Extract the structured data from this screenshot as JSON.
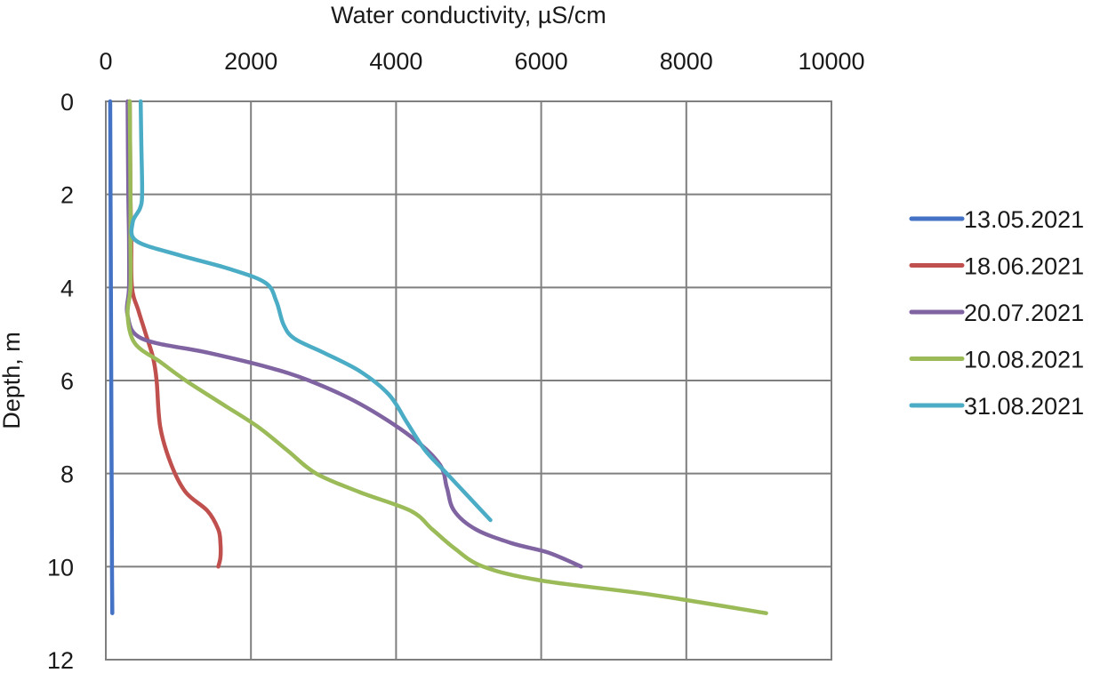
{
  "chart_data": {
    "type": "line",
    "title": "",
    "xlabel": "Water conductivity, µS/cm",
    "ylabel": "Depth, m",
    "xlim": [
      0,
      10000
    ],
    "ylim": [
      12,
      0
    ],
    "x_ticks": [
      0,
      2000,
      4000,
      6000,
      8000,
      10000
    ],
    "x_tick_labels": [
      "0",
      "2000",
      "4000",
      "6000",
      "8000",
      "10000"
    ],
    "y_ticks": [
      0,
      2,
      4,
      6,
      8,
      10,
      12
    ],
    "y_tick_labels": [
      "0",
      "2",
      "4",
      "6",
      "8",
      "10",
      "12"
    ],
    "x_axis_position": "top",
    "y_axis_inverted": true,
    "grid": true,
    "legend_position": "right",
    "series": [
      {
        "name": "13.05.2021",
        "color": "#4472C4",
        "points": [
          [
            60,
            0
          ],
          [
            65,
            2
          ],
          [
            70,
            4
          ],
          [
            75,
            6
          ],
          [
            80,
            8
          ],
          [
            85,
            10
          ],
          [
            90,
            11
          ]
        ]
      },
      {
        "name": "18.06.2021",
        "color": "#C0504D",
        "points": [
          [
            330,
            0
          ],
          [
            340,
            2
          ],
          [
            350,
            3
          ],
          [
            360,
            4
          ],
          [
            450,
            4.5
          ],
          [
            550,
            5
          ],
          [
            650,
            5.5
          ],
          [
            700,
            6
          ],
          [
            750,
            7
          ],
          [
            900,
            7.8
          ],
          [
            1100,
            8.4
          ],
          [
            1400,
            8.8
          ],
          [
            1550,
            9.2
          ],
          [
            1580,
            9.5
          ],
          [
            1580,
            9.8
          ],
          [
            1550,
            10
          ]
        ]
      },
      {
        "name": "20.07.2021",
        "color": "#8064A2",
        "points": [
          [
            300,
            0
          ],
          [
            310,
            2
          ],
          [
            320,
            3
          ],
          [
            320,
            4
          ],
          [
            300,
            4.6
          ],
          [
            500,
            5.1
          ],
          [
            1400,
            5.4
          ],
          [
            2200,
            5.7
          ],
          [
            2800,
            6.0
          ],
          [
            3500,
            6.5
          ],
          [
            4200,
            7.2
          ],
          [
            4600,
            7.8
          ],
          [
            4700,
            8.3
          ],
          [
            4800,
            8.8
          ],
          [
            5100,
            9.2
          ],
          [
            5600,
            9.5
          ],
          [
            6100,
            9.7
          ],
          [
            6550,
            10
          ]
        ]
      },
      {
        "name": "10.08.2021",
        "color": "#9BBB59",
        "points": [
          [
            330,
            0
          ],
          [
            340,
            2
          ],
          [
            340,
            3
          ],
          [
            340,
            4
          ],
          [
            300,
            4.6
          ],
          [
            400,
            5.2
          ],
          [
            750,
            5.6
          ],
          [
            1100,
            6.0
          ],
          [
            1600,
            6.5
          ],
          [
            2100,
            7.0
          ],
          [
            2500,
            7.5
          ],
          [
            2900,
            8.0
          ],
          [
            3500,
            8.4
          ],
          [
            4200,
            8.8
          ],
          [
            4500,
            9.2
          ],
          [
            4800,
            9.6
          ],
          [
            5200,
            10.0
          ],
          [
            6000,
            10.3
          ],
          [
            7500,
            10.6
          ],
          [
            9100,
            11
          ]
        ]
      },
      {
        "name": "31.08.2021",
        "color": "#4BACC6",
        "points": [
          [
            480,
            0
          ],
          [
            490,
            1
          ],
          [
            500,
            2
          ],
          [
            470,
            2.3
          ],
          [
            370,
            2.6
          ],
          [
            420,
            3.0
          ],
          [
            1000,
            3.3
          ],
          [
            1700,
            3.6
          ],
          [
            2200,
            3.9
          ],
          [
            2350,
            4.3
          ],
          [
            2450,
            4.8
          ],
          [
            2600,
            5.1
          ],
          [
            3000,
            5.4
          ],
          [
            3500,
            5.8
          ],
          [
            3900,
            6.3
          ],
          [
            4150,
            6.9
          ],
          [
            4400,
            7.5
          ],
          [
            4700,
            8.0
          ],
          [
            5000,
            8.5
          ],
          [
            5300,
            9
          ]
        ]
      }
    ]
  }
}
